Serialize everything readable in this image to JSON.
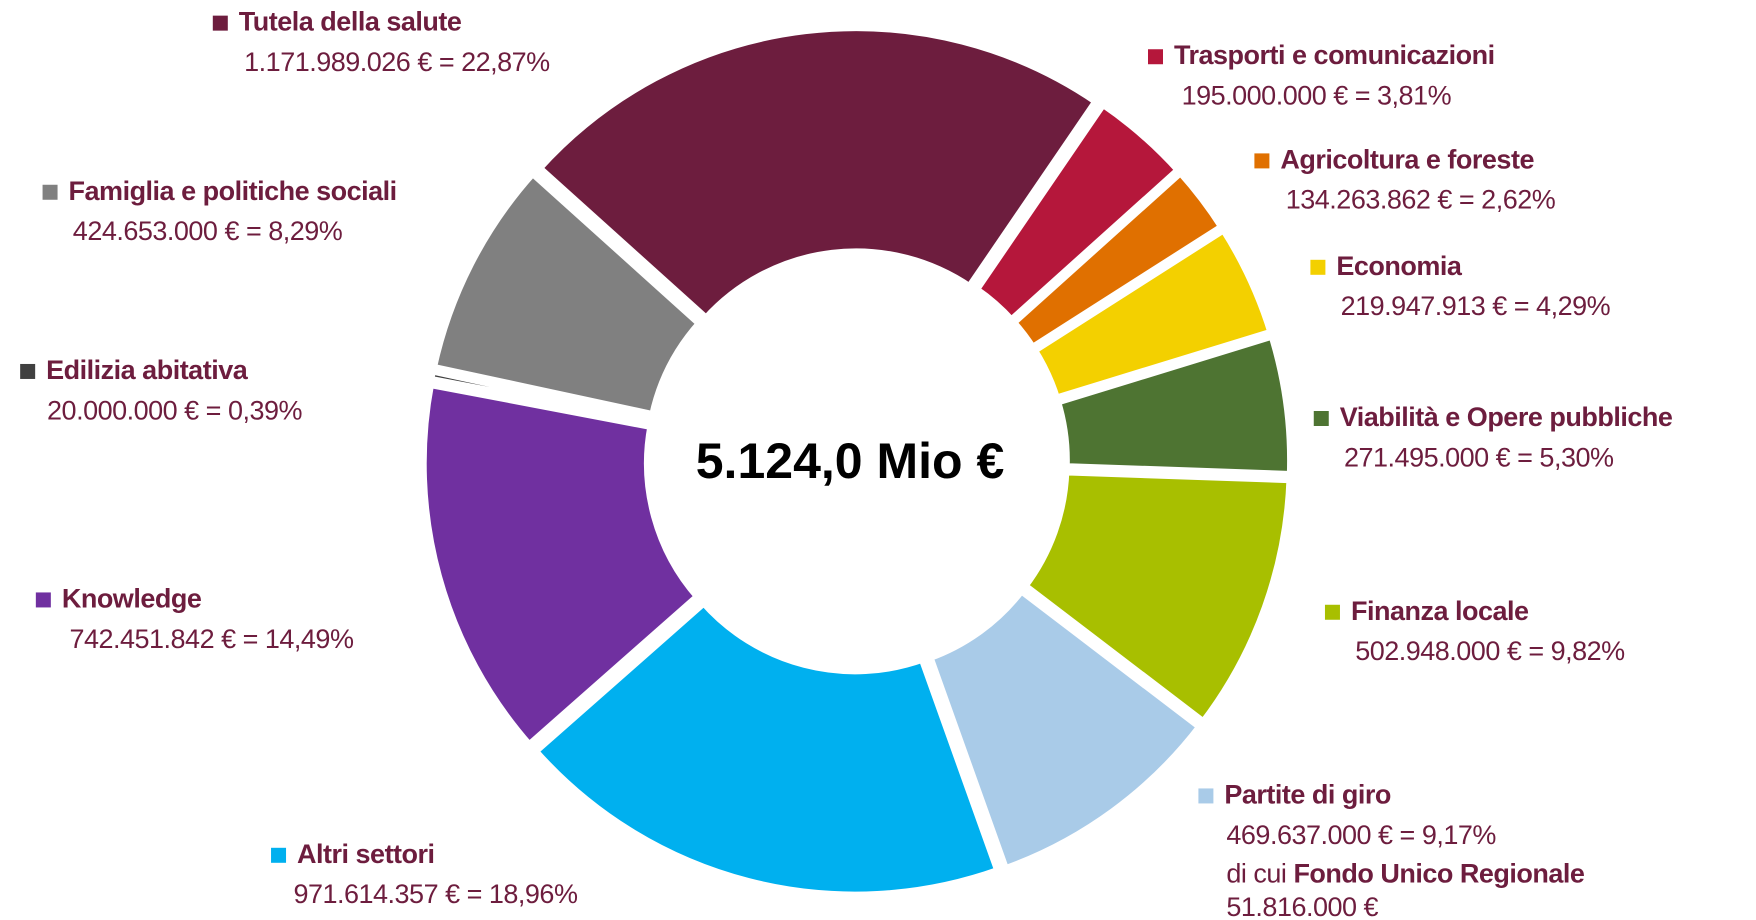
{
  "chart_data": {
    "type": "donut",
    "center_label": "5.124,0 Mio €",
    "categories": [
      "Tutela della salute",
      "Trasporti e comunicazioni",
      "Agricoltura e foreste",
      "Economia",
      "Viabilità e Opere pubbliche",
      "Finanza locale",
      "Partite di giro",
      "Altri settori",
      "Knowledge",
      "Edilizia abitativa",
      "Famiglia e politiche sociali"
    ],
    "values": [
      1171989026,
      195000000,
      134263862,
      219947913,
      271495000,
      502948000,
      469637000,
      971614357,
      742451842,
      20000000,
      424653000
    ],
    "value_labels": [
      "1.171.989.026 € = 22,87%",
      "195.000.000 € = 3,81%",
      "134.263.862 € = 2,62%",
      "219.947.913 € = 4,29%",
      "271.495.000 € = 5,30%",
      "502.948.000 € = 9,82%",
      "469.637.000 € = 9,17%",
      "971.614.357 € = 18,96%",
      "742.451.842 € = 14,49%",
      "20.000.000 € = 0,39%",
      "424.653.000 € = 8,29%"
    ],
    "colors": [
      "#6d1d3e",
      "#b5173b",
      "#e07000",
      "#f3d000",
      "#4e7432",
      "#a8bf00",
      "#a9cbe8",
      "#00b0ef",
      "#7030a0",
      "#404040",
      "#808080"
    ],
    "annotations": [
      {
        "text": "di cui",
        "bold": "Fondo Unico Regionale",
        "value": "51.816.000 €"
      }
    ]
  }
}
